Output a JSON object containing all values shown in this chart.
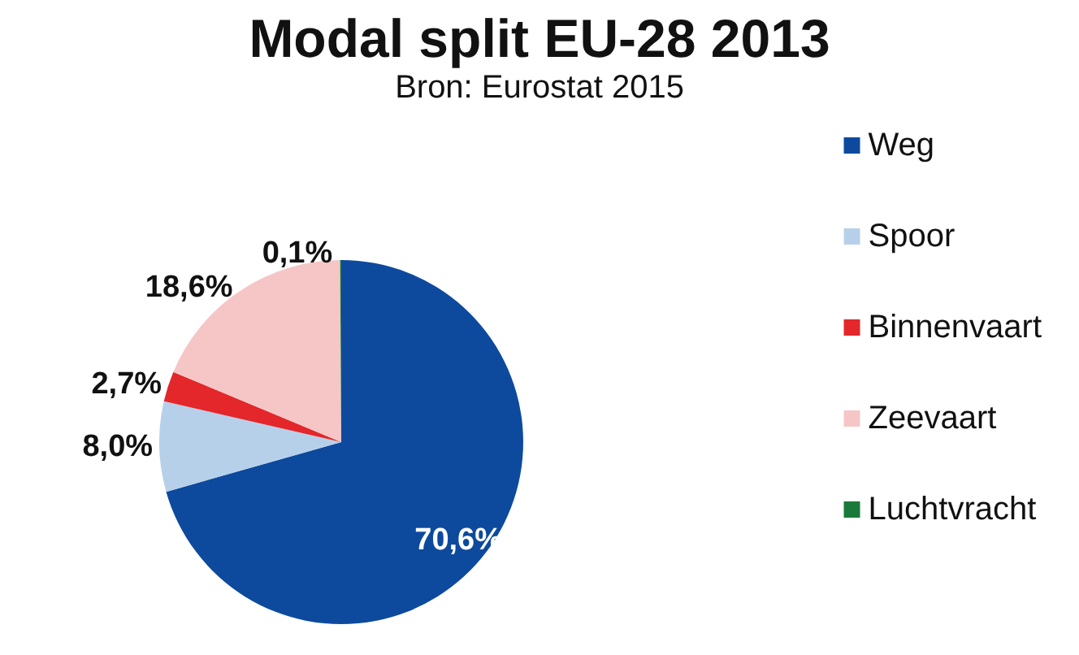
{
  "chart_data": {
    "type": "pie",
    "title": "Modal split EU-28 2013",
    "subtitle": "Bron: Eurostat 2015",
    "categories": [
      "Weg",
      "Spoor",
      "Binnenvaart",
      "Zeevaart",
      "Luchtvracht"
    ],
    "values": [
      70.6,
      8.0,
      2.7,
      18.6,
      0.1
    ],
    "value_labels": [
      "70,6%",
      "8,0%",
      "2,7%",
      "18,6%",
      "0,1%"
    ],
    "colors": [
      "#0d4a9e",
      "#b7d0ea",
      "#e3272b",
      "#f6c6c6",
      "#1a7a3a"
    ],
    "legend": "right"
  }
}
